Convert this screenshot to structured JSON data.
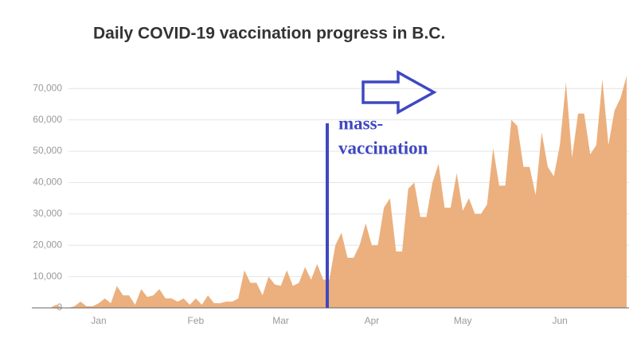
{
  "chart_data": {
    "type": "area",
    "title": "Daily COVID-19 vaccination progress in B.C.",
    "annotation": [
      "mass-",
      "vaccination"
    ],
    "categories": [
      null,
      null,
      null,
      null,
      null,
      null,
      null,
      null,
      "Jan",
      null,
      null,
      null,
      null,
      null,
      null,
      null,
      null,
      null,
      null,
      null,
      null,
      null,
      null,
      null,
      "Feb",
      null,
      null,
      null,
      null,
      null,
      null,
      null,
      null,
      null,
      null,
      null,
      null,
      null,
      "Mar",
      null,
      null,
      null,
      null,
      null,
      null,
      null,
      null,
      null,
      null,
      null,
      null,
      null,
      null,
      "Apr",
      null,
      null,
      null,
      null,
      null,
      null,
      null,
      null,
      null,
      null,
      null,
      null,
      null,
      null,
      "May",
      null,
      null,
      null,
      null,
      null,
      null,
      null,
      null,
      null,
      null,
      null,
      null,
      null,
      null,
      null,
      "Jun",
      null,
      null,
      null,
      null,
      null,
      null,
      null,
      null,
      null,
      null,
      null
    ],
    "values": [
      0,
      1000,
      0,
      0,
      500,
      2000,
      500,
      500,
      1500,
      3000,
      1500,
      7000,
      4000,
      4000,
      1000,
      6000,
      3500,
      4000,
      6000,
      3000,
      3000,
      2000,
      3000,
      1000,
      3000,
      1000,
      4000,
      1500,
      1500,
      2000,
      2000,
      3000,
      12000,
      8000,
      8000,
      4000,
      10000,
      7500,
      7000,
      12000,
      7000,
      8000,
      13000,
      9000,
      14000,
      9000,
      9000,
      20000,
      24000,
      16000,
      16000,
      20000,
      27000,
      20000,
      20000,
      32000,
      35000,
      18000,
      18000,
      38000,
      40000,
      29000,
      29000,
      40000,
      46000,
      32000,
      32000,
      43000,
      31000,
      35000,
      30000,
      30000,
      33000,
      51000,
      39000,
      39000,
      60000,
      58000,
      45000,
      45000,
      36000,
      56000,
      45000,
      42000,
      52000,
      72000,
      48000,
      62000,
      62000,
      49000,
      52000,
      73000,
      52000,
      63000,
      67000,
      74000
    ],
    "color": "#ebb07e",
    "ylim": [
      0,
      75000
    ],
    "yticks": [
      0,
      {
        "value": 10000,
        "label": "10,000"
      },
      {
        "value": 20000,
        "label": "20,000"
      },
      {
        "value": 30000,
        "label": "30,000"
      },
      {
        "value": 40000,
        "label": "40,000"
      },
      {
        "value": 50000,
        "label": "50,000"
      },
      {
        "value": 60000,
        "label": "60,000"
      },
      {
        "value": 70000,
        "label": "70,000"
      }
    ],
    "grid": true
  }
}
